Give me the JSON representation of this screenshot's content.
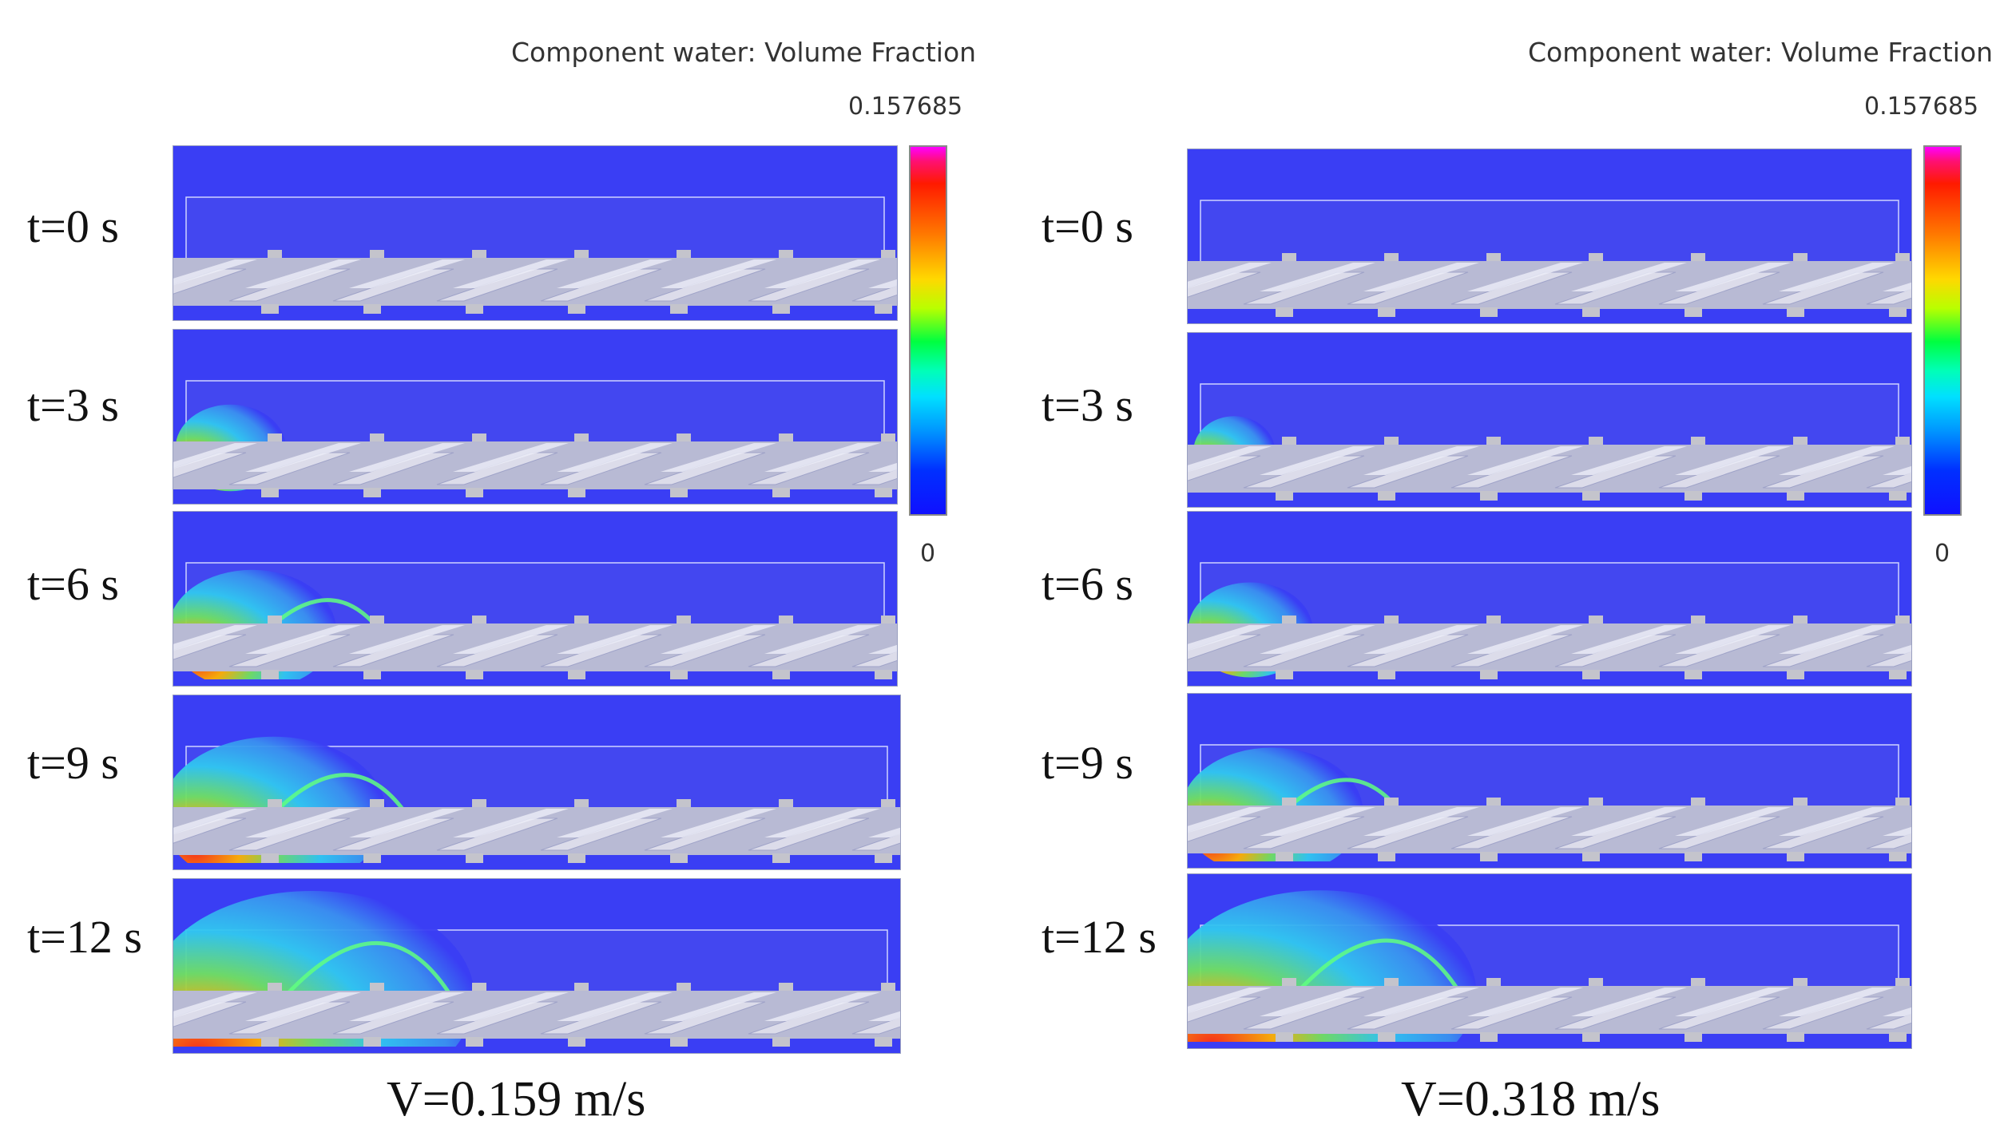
{
  "colors": {
    "domain_blue": "#3a3ef4",
    "domain_inner": "#4347f0",
    "screw_white": "#dcdcea",
    "screw_shadow": "#b8bad4",
    "block_gray": "#c4c4cc",
    "tick_blue": "#2a2ad8",
    "tick_magenta": "#e020c0"
  },
  "legend": {
    "title": "Component water: Volume Fraction",
    "max": "0.157685",
    "min": "0"
  },
  "panels": [
    {
      "id": "left",
      "velocity": "V=0.159 m/s",
      "frames": [
        {
          "time": "t=0 s",
          "spread": 0
        },
        {
          "time": "t=3 s",
          "spread": 0.25
        },
        {
          "time": "t=6 s",
          "spread": 0.45
        },
        {
          "time": "t=9 s",
          "spread": 0.65
        },
        {
          "time": "t=12 s",
          "spread": 1.0
        }
      ]
    },
    {
      "id": "right",
      "velocity": "V=0.318 m/s",
      "frames": [
        {
          "time": "t=0 s",
          "spread": 0
        },
        {
          "time": "t=3 s",
          "spread": 0.15
        },
        {
          "time": "t=6 s",
          "spread": 0.3
        },
        {
          "time": "t=9 s",
          "spread": 0.5
        },
        {
          "time": "t=12 s",
          "spread": 0.95
        }
      ]
    }
  ]
}
